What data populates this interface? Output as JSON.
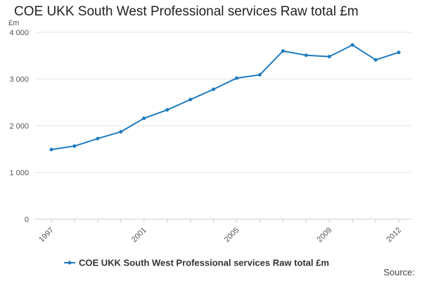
{
  "chart_data": {
    "type": "line",
    "title": "COE UKK South West Professional services Raw total £m",
    "ylabel": "£m",
    "xlabel": "",
    "x": [
      1997,
      1998,
      1999,
      2000,
      2001,
      2002,
      2003,
      2004,
      2005,
      2006,
      2007,
      2008,
      2009,
      2010,
      2011,
      2012
    ],
    "series": [
      {
        "name": "COE UKK South West Professional services Raw total £m",
        "values": [
          1490,
          1565,
          1725,
          1870,
          2160,
          2340,
          2560,
          2780,
          3020,
          3090,
          3600,
          3510,
          3480,
          3730,
          3410,
          3570
        ]
      }
    ],
    "xticks": [
      "1997",
      "2001",
      "2005",
      "2009",
      "2012"
    ],
    "yticks": [
      "0",
      "1 000",
      "2 000",
      "3 000",
      "4 000"
    ],
    "ylim": [
      0,
      4000
    ],
    "grid": true,
    "legend_position": "bottom",
    "colors": {
      "series": "#1f7bbf"
    }
  },
  "source_label": "Source:"
}
